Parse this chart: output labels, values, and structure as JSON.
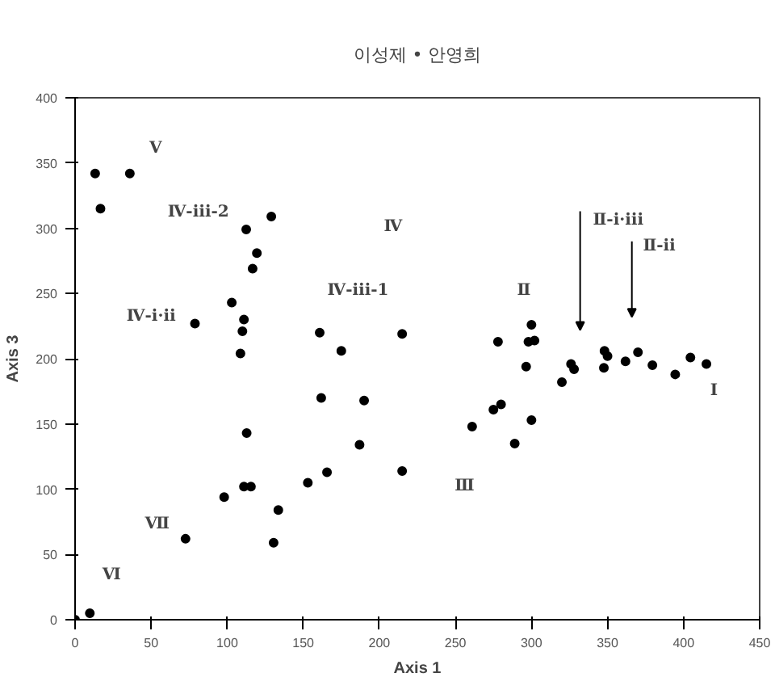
{
  "chart_data": {
    "type": "scatter",
    "title": "이성제 • 안영희",
    "xlabel": "Axis 1",
    "ylabel": "Axis 3",
    "x": [
      13.2,
      36,
      16.7,
      129,
      112.5,
      119.5,
      116.7,
      103,
      78.8,
      111,
      110,
      108.7,
      160.8,
      175,
      161.8,
      190,
      112.8,
      187,
      165.6,
      111,
      115.6,
      153,
      98,
      133.6,
      130.5,
      72.6,
      9.7,
      0,
      215,
      215,
      278,
      300,
      298,
      302,
      296.5,
      326,
      328,
      320,
      348,
      350,
      347.6,
      361.8,
      370,
      379.5,
      404.5,
      415,
      394.5,
      275,
      280,
      261,
      300,
      289
    ],
    "values": [
      342,
      342,
      315,
      309,
      299,
      281,
      269,
      243,
      227,
      230,
      221,
      204,
      220,
      206,
      170,
      168,
      143,
      134,
      113,
      102,
      102,
      105,
      94,
      84,
      59,
      62,
      5,
      0,
      219,
      114,
      213,
      226,
      213,
      214,
      194,
      196,
      192,
      182,
      206,
      202,
      193,
      198,
      205,
      195,
      201,
      196,
      188,
      161,
      165,
      148,
      153,
      135
    ],
    "color": "#000000",
    "marker": "circle",
    "grid": false,
    "legend": false,
    "xlim": [
      0,
      450
    ],
    "ylim": [
      0,
      400
    ],
    "xticks": [
      0,
      50,
      100,
      150,
      200,
      250,
      300,
      350,
      400,
      450
    ],
    "yticks": [
      0,
      50,
      100,
      150,
      200,
      250,
      300,
      350,
      400
    ],
    "annotations": [
      "Ⅴ",
      "Ⅳ-ⅲ-2",
      "Ⅳ",
      "Ⅳ-ⅲ-1",
      "Ⅳ-ⅰ·ⅱ",
      "Ⅶ",
      "Ⅵ",
      "Ⅱ",
      "Ⅱ-ⅰ·ⅲ",
      "Ⅱ-ⅱ",
      "Ⅰ",
      "Ⅲ"
    ]
  }
}
